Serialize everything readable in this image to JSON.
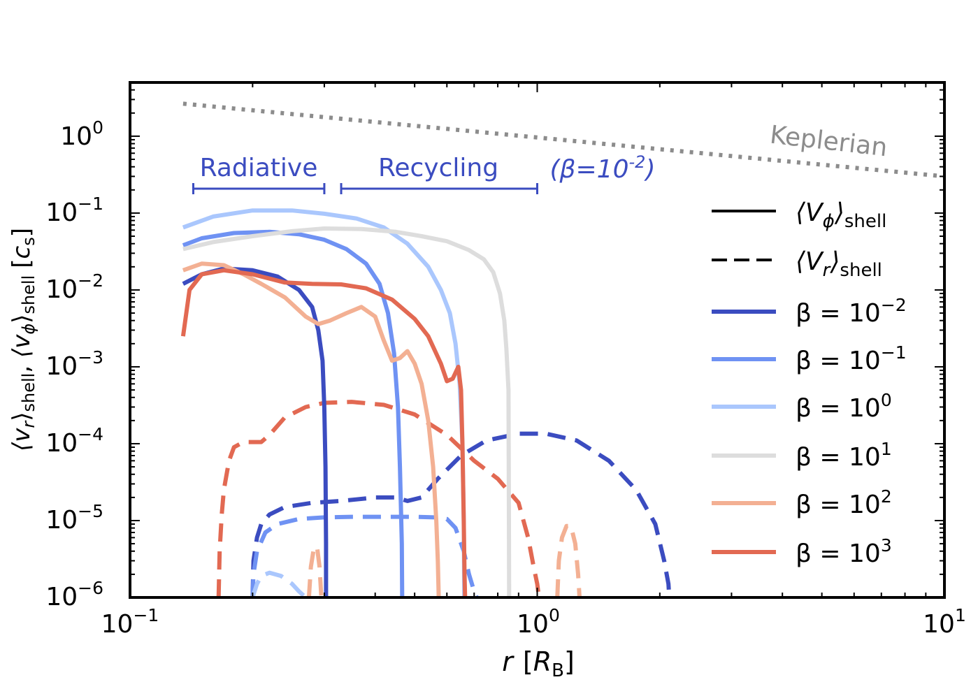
{
  "chart_data": {
    "type": "line",
    "scale": {
      "x": "log",
      "y": "log"
    },
    "xlim": [
      0.1,
      10
    ],
    "ylim": [
      1e-06,
      5
    ],
    "xlabel": {
      "main": "r",
      "bracket_open": "[",
      "sym": "R",
      "sub": "B",
      "bracket_close": "]"
    },
    "ylabel": {
      "vr": "⟨v",
      "r": "r",
      "shell": "shell",
      "sep": ", ",
      "vphi": "⟨v",
      "phi": "ϕ",
      "unit_open": "[",
      "cs": "c",
      "s": "s",
      "unit_close": "]"
    },
    "xticks": [
      {
        "value": 0.1,
        "base": "10",
        "exp": "−1"
      },
      {
        "value": 1,
        "base": "10",
        "exp": "0"
      },
      {
        "value": 10,
        "base": "10",
        "exp": "1"
      }
    ],
    "yticks": [
      {
        "value": 1e-06,
        "base": "10",
        "exp": "−6"
      },
      {
        "value": 1e-05,
        "base": "10",
        "exp": "−5"
      },
      {
        "value": 0.0001,
        "base": "10",
        "exp": "−4"
      },
      {
        "value": 0.001,
        "base": "10",
        "exp": "−3"
      },
      {
        "value": 0.01,
        "base": "10",
        "exp": "−2"
      },
      {
        "value": 0.1,
        "base": "10",
        "exp": "−1"
      },
      {
        "value": 1,
        "base": "10",
        "exp": "0"
      }
    ],
    "annotations": {
      "radiative": "Radiative",
      "recycling": "Recycling",
      "beta_note": {
        "open": "(β=10",
        "exp": "-2",
        "close": ")"
      },
      "keplerian": "Keplerian",
      "radiative_range": [
        0.143,
        0.3
      ],
      "recycling_range": [
        0.33,
        1.0
      ]
    },
    "keplerian": {
      "name": "Keplerian",
      "color": "#8c8c8c",
      "x": [
        0.135,
        10
      ],
      "y": [
        2.65,
        0.3
      ]
    },
    "legend": {
      "position": "right",
      "style_entries": [
        {
          "label": "⟨V",
          "sym": "ϕ",
          "sub": "shell",
          "style": "solid"
        },
        {
          "label": "⟨V",
          "sym": "r",
          "sub": "shell",
          "style": "dashed"
        }
      ],
      "beta_entries": [
        {
          "label": "β = 10",
          "exp": "−2",
          "color": "#3b4cc0"
        },
        {
          "label": "β = 10",
          "exp": "−1",
          "color": "#6f92f3"
        },
        {
          "label": "β = 10",
          "exp": "0",
          "color": "#aac7fd"
        },
        {
          "label": "β = 10",
          "exp": "1",
          "color": "#dddddd"
        },
        {
          "label": "β = 10",
          "exp": "2",
          "color": "#f3b093"
        },
        {
          "label": "β = 10",
          "exp": "3",
          "color": "#e26952"
        }
      ]
    },
    "series": [
      {
        "name": "vphi beta=1e-2",
        "color": "#3b4cc0",
        "style": "solid",
        "x": [
          0.135,
          0.15,
          0.17,
          0.2,
          0.23,
          0.26,
          0.28,
          0.29,
          0.297,
          0.3,
          0.302,
          0.303,
          0.303
        ],
        "y": [
          0.012,
          0.016,
          0.019,
          0.018,
          0.015,
          0.01,
          0.006,
          0.003,
          0.0012,
          0.0003,
          5e-05,
          5e-06,
          1e-06
        ]
      },
      {
        "name": "vphi beta=1e-1",
        "color": "#6f92f3",
        "style": "solid",
        "x": [
          0.135,
          0.15,
          0.18,
          0.22,
          0.26,
          0.3,
          0.34,
          0.38,
          0.41,
          0.43,
          0.445,
          0.455,
          0.46,
          0.465,
          0.466
        ],
        "y": [
          0.038,
          0.047,
          0.055,
          0.057,
          0.053,
          0.045,
          0.034,
          0.022,
          0.012,
          0.005,
          0.0015,
          0.0003,
          5e-05,
          5e-06,
          1e-06
        ]
      },
      {
        "name": "vphi beta=1e0",
        "color": "#aac7fd",
        "style": "solid",
        "x": [
          0.135,
          0.16,
          0.2,
          0.25,
          0.3,
          0.36,
          0.42,
          0.48,
          0.54,
          0.58,
          0.61,
          0.63,
          0.645,
          0.655,
          0.66,
          0.662
        ],
        "y": [
          0.065,
          0.09,
          0.108,
          0.108,
          0.098,
          0.085,
          0.065,
          0.04,
          0.02,
          0.01,
          0.005,
          0.002,
          0.0006,
          0.0001,
          1e-05,
          1e-06
        ]
      },
      {
        "name": "vphi beta=1e1",
        "color": "#dddddd",
        "style": "solid",
        "x": [
          0.135,
          0.16,
          0.2,
          0.25,
          0.3,
          0.37,
          0.45,
          0.52,
          0.6,
          0.68,
          0.74,
          0.78,
          0.81,
          0.83,
          0.84,
          0.85,
          0.852,
          0.853
        ],
        "y": [
          0.034,
          0.042,
          0.05,
          0.058,
          0.063,
          0.062,
          0.057,
          0.05,
          0.043,
          0.033,
          0.025,
          0.017,
          0.009,
          0.004,
          0.0017,
          0.0005,
          1e-05,
          1e-06
        ]
      },
      {
        "name": "vphi beta=1e2",
        "color": "#f3b093",
        "style": "solid",
        "x": [
          0.135,
          0.15,
          0.17,
          0.19,
          0.21,
          0.24,
          0.27,
          0.29,
          0.31,
          0.34,
          0.37,
          0.4,
          0.42,
          0.44,
          0.46,
          0.48,
          0.5,
          0.52,
          0.54,
          0.555,
          0.565,
          0.57,
          0.573
        ],
        "y": [
          0.018,
          0.022,
          0.021,
          0.016,
          0.012,
          0.008,
          0.0045,
          0.0036,
          0.004,
          0.005,
          0.006,
          0.0045,
          0.0022,
          0.0012,
          0.0013,
          0.0016,
          0.0011,
          0.0006,
          0.0002,
          5e-05,
          1e-05,
          3e-06,
          1e-06
        ]
      },
      {
        "name": "vphi beta=1e3",
        "color": "#e26952",
        "style": "solid",
        "x": [
          0.135,
          0.14,
          0.15,
          0.17,
          0.2,
          0.24,
          0.28,
          0.33,
          0.38,
          0.44,
          0.5,
          0.54,
          0.58,
          0.6,
          0.62,
          0.64,
          0.65,
          0.655,
          0.66,
          0.663,
          0.665
        ],
        "y": [
          0.0025,
          0.01,
          0.016,
          0.018,
          0.016,
          0.0125,
          0.012,
          0.0118,
          0.0105,
          0.0075,
          0.0042,
          0.0025,
          0.0011,
          0.00065,
          0.0007,
          0.001,
          0.0005,
          0.0001,
          1e-05,
          2e-06,
          1e-06
        ]
      },
      {
        "name": "vr beta=1e-2",
        "color": "#3b4cc0",
        "style": "dashed",
        "x": [
          0.2,
          0.201,
          0.205,
          0.21,
          0.22,
          0.24,
          0.28,
          0.33,
          0.4,
          0.45,
          0.48,
          0.52,
          0.57,
          0.65,
          0.75,
          0.9,
          1.05,
          1.25,
          1.5,
          1.75,
          1.95,
          2.05,
          2.1,
          2.11
        ],
        "y": [
          1e-06,
          3e-06,
          6e-06,
          9e-06,
          1.2e-05,
          1.5e-05,
          1.7e-05,
          1.8e-05,
          2e-05,
          2e-05,
          1.8e-05,
          2e-05,
          3.5e-05,
          7e-05,
          0.00011,
          0.000135,
          0.000135,
          0.00011,
          6e-05,
          2.5e-05,
          9e-06,
          3e-06,
          1.5e-06,
          1e-06
        ]
      },
      {
        "name": "vr beta=1e-1",
        "color": "#6f92f3",
        "style": "dashed",
        "x": [
          0.2,
          0.201,
          0.205,
          0.215,
          0.23,
          0.26,
          0.3,
          0.35,
          0.42,
          0.5,
          0.56,
          0.6,
          0.63,
          0.66,
          0.68,
          0.7,
          0.71
        ],
        "y": [
          1e-06,
          2e-06,
          4e-06,
          7e-06,
          9e-06,
          1.05e-05,
          1.1e-05,
          1.12e-05,
          1.12e-05,
          1.12e-05,
          1.1e-05,
          1.05e-05,
          8e-06,
          4e-06,
          2e-06,
          1.2e-06,
          1e-06
        ]
      },
      {
        "name": "vr beta=1e0",
        "color": "#aac7fd",
        "style": "dashed",
        "x": [
          0.2,
          0.205,
          0.21,
          0.22,
          0.235,
          0.25,
          0.26,
          0.27
        ],
        "y": [
          1e-06,
          1.5e-06,
          1.9e-06,
          2.1e-06,
          1.9e-06,
          1.5e-06,
          1.2e-06,
          1e-06
        ]
      },
      {
        "name": "vr beta=1e2 a",
        "color": "#f3b093",
        "style": "dashed",
        "x": [
          0.275,
          0.278,
          0.283,
          0.288,
          0.292,
          0.295
        ],
        "y": [
          1e-06,
          2.5e-06,
          4.5e-06,
          4.5e-06,
          2.5e-06,
          1e-06
        ]
      },
      {
        "name": "vr beta=1e2 b",
        "color": "#f3b093",
        "style": "dashed",
        "x": [
          1.12,
          1.13,
          1.15,
          1.18,
          1.21,
          1.24,
          1.26,
          1.27
        ],
        "y": [
          1e-06,
          3e-06,
          6e-06,
          8.5e-06,
          8.5e-06,
          5e-06,
          2e-06,
          1e-06
        ]
      },
      {
        "name": "vr beta=1e3",
        "color": "#e26952",
        "style": "dashed",
        "x": [
          0.165,
          0.166,
          0.168,
          0.17,
          0.175,
          0.18,
          0.19,
          0.21,
          0.22,
          0.24,
          0.27,
          0.3,
          0.35,
          0.42,
          0.5,
          0.6,
          0.7,
          0.8,
          0.9,
          0.95,
          0.98,
          1.0,
          1.01
        ],
        "y": [
          1e-06,
          4e-06,
          1.2e-05,
          2.5e-05,
          6e-05,
          9e-05,
          0.000105,
          0.000105,
          0.00013,
          0.00022,
          0.0003,
          0.00034,
          0.00035,
          0.00032,
          0.00024,
          0.00013,
          6e-05,
          3.5e-05,
          1.7e-05,
          6e-06,
          2.5e-06,
          1.5e-06,
          1e-06
        ]
      }
    ]
  }
}
